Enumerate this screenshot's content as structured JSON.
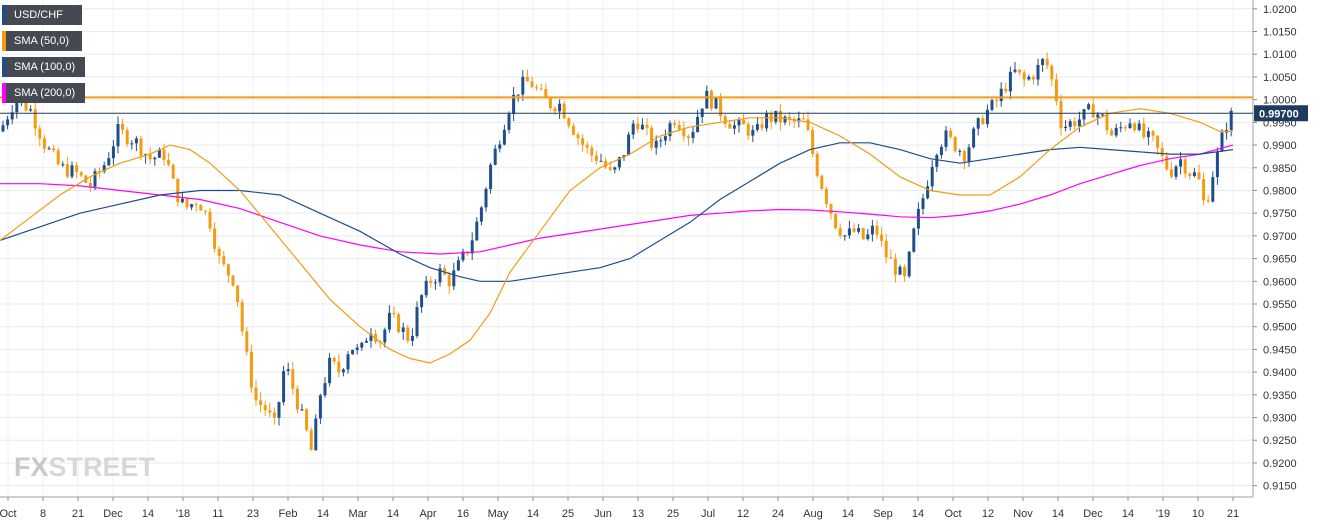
{
  "legend": [
    {
      "label": "USD/CHF",
      "color": "#1f4e8c"
    },
    {
      "label": "SMA (50,0)",
      "color": "#f39c12"
    },
    {
      "label": "SMA (100,0)",
      "color": "#1f4e8c"
    },
    {
      "label": "SMA (200,0)",
      "color": "#ff00ff"
    }
  ],
  "logo": {
    "fx": "FX",
    "street": "STREET"
  },
  "chart_data": {
    "type": "candlestick",
    "title": "",
    "ylim": [
      0.9125,
      1.0215
    ],
    "y_ticks": [
      "1.0200",
      "1.0150",
      "1.0100",
      "1.0050",
      "1.0000",
      "0.9950",
      "0.9900",
      "0.9850",
      "0.9800",
      "0.9750",
      "0.9700",
      "0.9650",
      "0.9600",
      "0.9550",
      "0.9500",
      "0.9450",
      "0.9400",
      "0.9350",
      "0.9300",
      "0.9250",
      "0.9200",
      "0.9150"
    ],
    "x_ticks": [
      "Oct",
      "8",
      "21",
      "Dec",
      "14",
      "'18",
      "11",
      "23",
      "Feb",
      "14",
      "Mar",
      "14",
      "Apr",
      "16",
      "May",
      "14",
      "25",
      "Jun",
      "13",
      "25",
      "Jul",
      "12",
      "24",
      "Aug",
      "14",
      "Sep",
      "14",
      "Oct",
      "12",
      "Nov",
      "14",
      "Dec",
      "14",
      "'19",
      "10",
      "21"
    ],
    "current_price": "0.99700",
    "horizontal_line": {
      "value": 1.0005,
      "color": "#f39c12"
    },
    "colors": {
      "up": "#1f4e8c",
      "down": "#f39c12",
      "sma50": "#f39c12",
      "sma100": "#1f4e8c",
      "sma200": "#ff00ff",
      "price_label_bg": "#1f3a5f"
    },
    "close_path": [
      [
        0,
        0.993
      ],
      [
        15,
        1.0
      ],
      [
        30,
        0.998
      ],
      [
        45,
        0.99
      ],
      [
        60,
        0.985
      ],
      [
        75,
        0.984
      ],
      [
        90,
        0.981
      ],
      [
        105,
        0.986
      ],
      [
        118,
        0.993
      ],
      [
        135,
        0.991
      ],
      [
        150,
        0.987
      ],
      [
        165,
        0.988
      ],
      [
        175,
        0.98
      ],
      [
        185,
        0.976
      ],
      [
        198,
        0.978
      ],
      [
        210,
        0.973
      ],
      [
        220,
        0.964
      ],
      [
        235,
        0.96
      ],
      [
        245,
        0.945
      ],
      [
        255,
        0.934
      ],
      [
        265,
        0.932
      ],
      [
        275,
        0.928
      ],
      [
        285,
        0.942
      ],
      [
        295,
        0.935
      ],
      [
        305,
        0.928
      ],
      [
        312,
        0.922
      ],
      [
        320,
        0.935
      ],
      [
        330,
        0.942
      ],
      [
        340,
        0.94
      ],
      [
        350,
        0.946
      ],
      [
        360,
        0.944
      ],
      [
        370,
        0.95
      ],
      [
        380,
        0.947
      ],
      [
        390,
        0.952
      ],
      [
        400,
        0.95
      ],
      [
        410,
        0.947
      ],
      [
        420,
        0.956
      ],
      [
        430,
        0.96
      ],
      [
        440,
        0.962
      ],
      [
        450,
        0.96
      ],
      [
        460,
        0.964
      ],
      [
        470,
        0.968
      ],
      [
        480,
        0.975
      ],
      [
        490,
        0.985
      ],
      [
        500,
        0.992
      ],
      [
        510,
        0.999
      ],
      [
        520,
        1.003
      ],
      [
        530,
        1.004
      ],
      [
        540,
        1.001
      ],
      [
        550,
        0.999
      ],
      [
        560,
        0.999
      ],
      [
        570,
        0.995
      ],
      [
        580,
        0.991
      ],
      [
        590,
        0.988
      ],
      [
        600,
        0.987
      ],
      [
        612,
        0.983
      ],
      [
        625,
        0.989
      ],
      [
        635,
        0.996
      ],
      [
        645,
        0.993
      ],
      [
        655,
        0.989
      ],
      [
        665,
        0.993
      ],
      [
        675,
        0.996
      ],
      [
        690,
        0.992
      ],
      [
        705,
        1.001
      ],
      [
        715,
        0.999
      ],
      [
        725,
        0.996
      ],
      [
        735,
        0.994
      ],
      [
        745,
        0.994
      ],
      [
        755,
        0.992
      ],
      [
        765,
        0.996
      ],
      [
        775,
        0.996
      ],
      [
        790,
        0.995
      ],
      [
        805,
        0.995
      ],
      [
        815,
        0.986
      ],
      [
        825,
        0.979
      ],
      [
        835,
        0.973
      ],
      [
        845,
        0.97
      ],
      [
        855,
        0.971
      ],
      [
        865,
        0.969
      ],
      [
        875,
        0.972
      ],
      [
        885,
        0.966
      ],
      [
        895,
        0.963
      ],
      [
        905,
        0.96
      ],
      [
        915,
        0.972
      ],
      [
        925,
        0.98
      ],
      [
        935,
        0.989
      ],
      [
        945,
        0.992
      ],
      [
        955,
        0.99
      ],
      [
        965,
        0.988
      ],
      [
        975,
        0.993
      ],
      [
        985,
        0.997
      ],
      [
        995,
        0.999
      ],
      [
        1005,
        1.003
      ],
      [
        1015,
        1.006
      ],
      [
        1025,
        1.004
      ],
      [
        1035,
        1.006
      ],
      [
        1045,
        1.009
      ],
      [
        1055,
        1.002
      ],
      [
        1062,
        0.994
      ],
      [
        1072,
        0.995
      ],
      [
        1082,
        0.996
      ],
      [
        1092,
        0.998
      ],
      [
        1102,
        0.996
      ],
      [
        1112,
        0.992
      ],
      [
        1122,
        0.994
      ],
      [
        1132,
        0.996
      ],
      [
        1142,
        0.992
      ],
      [
        1152,
        0.991
      ],
      [
        1162,
        0.987
      ],
      [
        1170,
        0.984
      ],
      [
        1180,
        0.987
      ],
      [
        1190,
        0.984
      ],
      [
        1198,
        0.983
      ],
      [
        1205,
        0.976
      ],
      [
        1213,
        0.984
      ],
      [
        1220,
        0.99
      ],
      [
        1227,
        0.995
      ],
      [
        1233,
        0.997
      ]
    ],
    "sma50": [
      [
        0,
        0.969
      ],
      [
        30,
        0.974
      ],
      [
        60,
        0.979
      ],
      [
        90,
        0.983
      ],
      [
        120,
        0.986
      ],
      [
        150,
        0.988
      ],
      [
        170,
        0.99
      ],
      [
        190,
        0.989
      ],
      [
        210,
        0.986
      ],
      [
        240,
        0.98
      ],
      [
        270,
        0.972
      ],
      [
        300,
        0.964
      ],
      [
        330,
        0.956
      ],
      [
        360,
        0.95
      ],
      [
        390,
        0.945
      ],
      [
        410,
        0.943
      ],
      [
        430,
        0.942
      ],
      [
        450,
        0.944
      ],
      [
        470,
        0.947
      ],
      [
        490,
        0.953
      ],
      [
        510,
        0.962
      ],
      [
        540,
        0.971
      ],
      [
        570,
        0.98
      ],
      [
        600,
        0.985
      ],
      [
        630,
        0.988
      ],
      [
        660,
        0.992
      ],
      [
        690,
        0.994
      ],
      [
        720,
        0.995
      ],
      [
        750,
        0.996
      ],
      [
        780,
        0.996
      ],
      [
        810,
        0.995
      ],
      [
        840,
        0.992
      ],
      [
        870,
        0.988
      ],
      [
        900,
        0.983
      ],
      [
        930,
        0.98
      ],
      [
        960,
        0.979
      ],
      [
        990,
        0.979
      ],
      [
        1020,
        0.983
      ],
      [
        1050,
        0.989
      ],
      [
        1080,
        0.994
      ],
      [
        1110,
        0.997
      ],
      [
        1140,
        0.998
      ],
      [
        1170,
        0.997
      ],
      [
        1200,
        0.995
      ],
      [
        1220,
        0.993
      ],
      [
        1233,
        0.993
      ]
    ],
    "sma100": [
      [
        0,
        0.969
      ],
      [
        40,
        0.972
      ],
      [
        80,
        0.975
      ],
      [
        120,
        0.977
      ],
      [
        160,
        0.979
      ],
      [
        200,
        0.98
      ],
      [
        240,
        0.98
      ],
      [
        280,
        0.979
      ],
      [
        320,
        0.975
      ],
      [
        360,
        0.971
      ],
      [
        400,
        0.966
      ],
      [
        430,
        0.963
      ],
      [
        460,
        0.961
      ],
      [
        480,
        0.96
      ],
      [
        510,
        0.96
      ],
      [
        540,
        0.961
      ],
      [
        570,
        0.962
      ],
      [
        600,
        0.963
      ],
      [
        630,
        0.965
      ],
      [
        660,
        0.969
      ],
      [
        690,
        0.973
      ],
      [
        720,
        0.978
      ],
      [
        750,
        0.982
      ],
      [
        780,
        0.986
      ],
      [
        810,
        0.989
      ],
      [
        840,
        0.9905
      ],
      [
        870,
        0.9905
      ],
      [
        900,
        0.989
      ],
      [
        930,
        0.987
      ],
      [
        960,
        0.986
      ],
      [
        990,
        0.987
      ],
      [
        1020,
        0.988
      ],
      [
        1050,
        0.989
      ],
      [
        1080,
        0.9895
      ],
      [
        1110,
        0.989
      ],
      [
        1140,
        0.9885
      ],
      [
        1170,
        0.988
      ],
      [
        1200,
        0.988
      ],
      [
        1233,
        0.989
      ]
    ],
    "sma200": [
      [
        0,
        0.9815
      ],
      [
        40,
        0.9815
      ],
      [
        80,
        0.981
      ],
      [
        120,
        0.98
      ],
      [
        160,
        0.979
      ],
      [
        200,
        0.978
      ],
      [
        240,
        0.976
      ],
      [
        280,
        0.973
      ],
      [
        320,
        0.97
      ],
      [
        360,
        0.968
      ],
      [
        400,
        0.9665
      ],
      [
        440,
        0.966
      ],
      [
        480,
        0.9665
      ],
      [
        510,
        0.968
      ],
      [
        540,
        0.9695
      ],
      [
        570,
        0.9705
      ],
      [
        600,
        0.9715
      ],
      [
        630,
        0.9725
      ],
      [
        660,
        0.9735
      ],
      [
        690,
        0.9745
      ],
      [
        720,
        0.975
      ],
      [
        750,
        0.9755
      ],
      [
        780,
        0.9758
      ],
      [
        810,
        0.9757
      ],
      [
        840,
        0.9753
      ],
      [
        870,
        0.9748
      ],
      [
        900,
        0.9742
      ],
      [
        930,
        0.974
      ],
      [
        960,
        0.9745
      ],
      [
        990,
        0.9755
      ],
      [
        1020,
        0.977
      ],
      [
        1050,
        0.979
      ],
      [
        1080,
        0.9815
      ],
      [
        1110,
        0.9835
      ],
      [
        1140,
        0.9855
      ],
      [
        1170,
        0.987
      ],
      [
        1200,
        0.988
      ],
      [
        1233,
        0.99
      ]
    ]
  }
}
